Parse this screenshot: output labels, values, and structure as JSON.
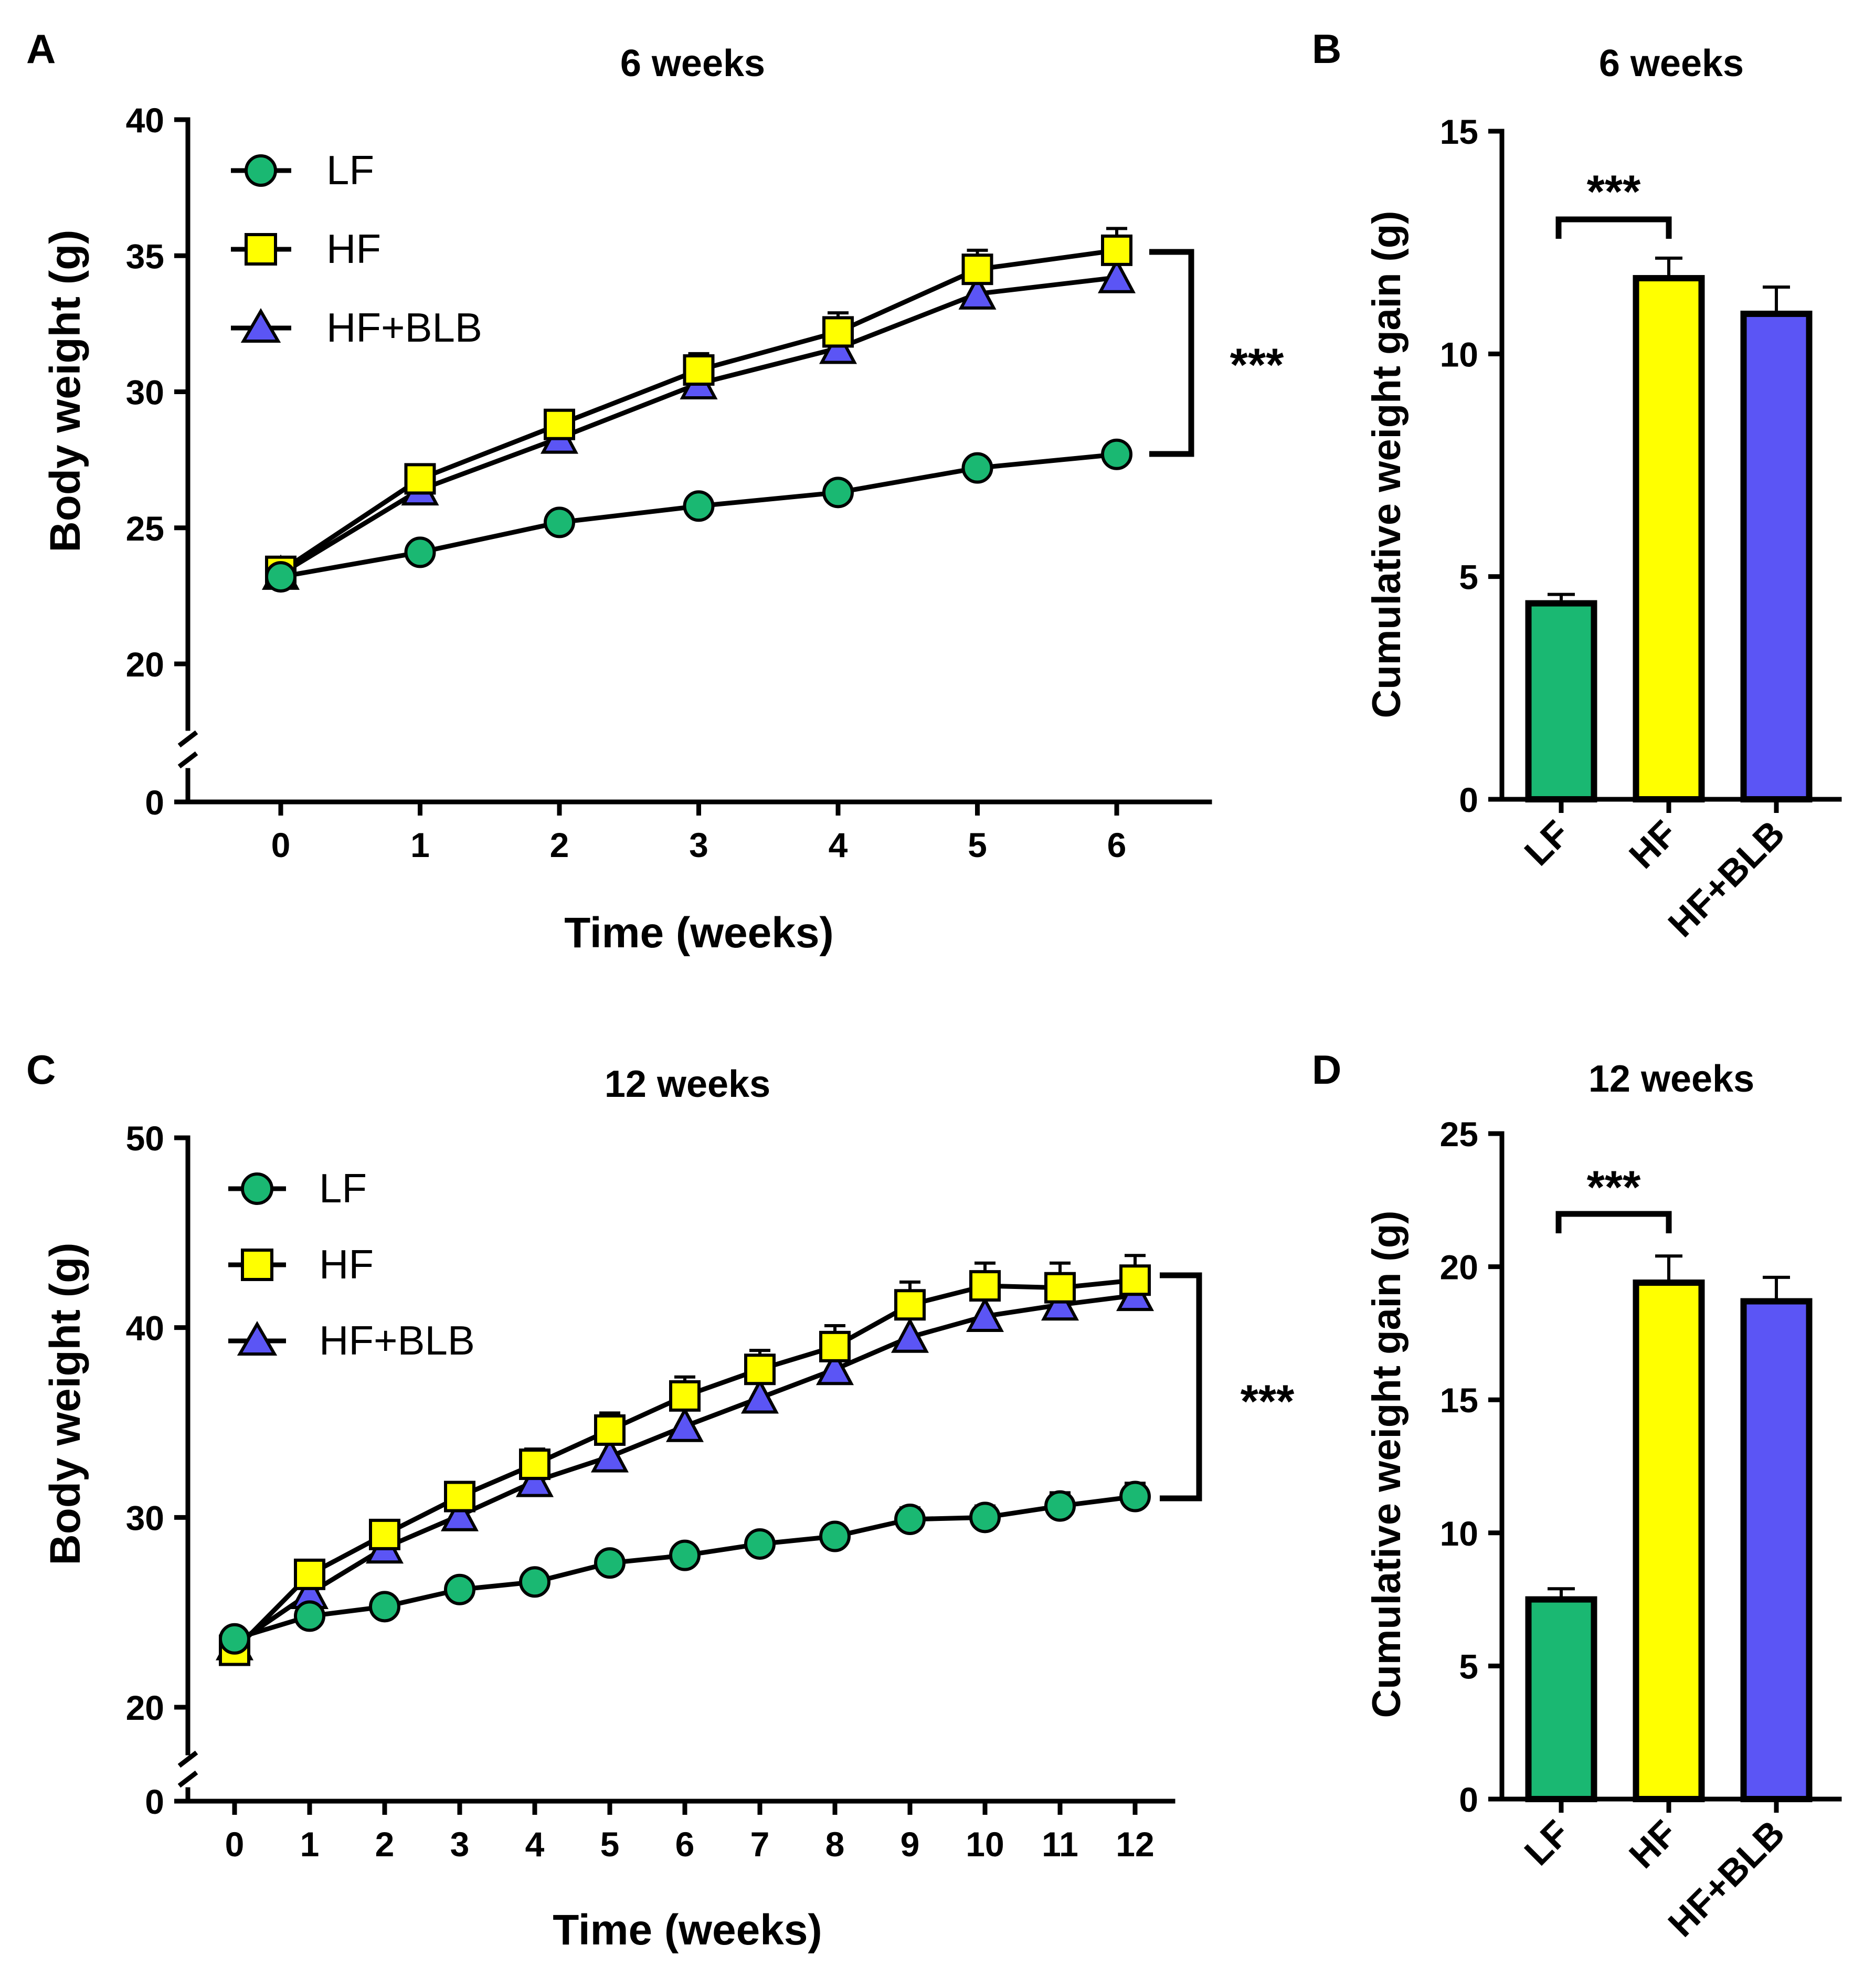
{
  "chart_data": [
    {
      "type": "line",
      "panel": "A",
      "title": "6 weeks",
      "xlabel": "Time (weeks)",
      "ylabel": "Body weight (g)",
      "x": [
        0,
        1,
        2,
        3,
        4,
        5,
        6
      ],
      "x_ticks": [
        "0",
        "1",
        "2",
        "3",
        "4",
        "5",
        "6"
      ],
      "y_ticks": [
        "0",
        "20",
        "25",
        "30",
        "35",
        "40"
      ],
      "ylim": [
        20,
        40
      ],
      "y_break": true,
      "legend_position": "top-left",
      "significance": "***",
      "series": [
        {
          "name": "LF",
          "marker": "circle",
          "color": "#1ab872",
          "values": [
            23.2,
            24.1,
            25.2,
            25.8,
            26.3,
            27.2,
            27.7
          ],
          "errors": [
            0.2,
            0.25,
            0.25,
            0.25,
            0.25,
            0.3,
            0.3
          ]
        },
        {
          "name": "HF",
          "marker": "square",
          "color": "#ffff00",
          "values": [
            23.4,
            26.8,
            28.8,
            30.8,
            32.2,
            34.5,
            35.2
          ],
          "errors": [
            0.3,
            0.4,
            0.5,
            0.6,
            0.7,
            0.7,
            0.8
          ]
        },
        {
          "name": "HF+BLB",
          "marker": "triangle",
          "color": "#5b55f5",
          "values": [
            23.3,
            26.4,
            28.3,
            30.3,
            31.6,
            33.6,
            34.2
          ],
          "errors": [
            0.3,
            0.4,
            0.5,
            0.5,
            0.6,
            0.6,
            0.7
          ]
        }
      ]
    },
    {
      "type": "bar",
      "panel": "B",
      "title": "6 weeks",
      "xlabel": "",
      "ylabel": "Cumulative weight gain (g)",
      "categories": [
        "LF",
        "HF",
        "HF+BLB"
      ],
      "values": [
        4.4,
        11.7,
        10.9
      ],
      "errors": [
        0.2,
        0.45,
        0.6
      ],
      "colors": [
        "#1ab872",
        "#ffff00",
        "#5b55f5"
      ],
      "y_ticks": [
        "0",
        "5",
        "10",
        "15"
      ],
      "ylim": [
        0,
        15
      ],
      "significance": "***"
    },
    {
      "type": "line",
      "panel": "C",
      "title": "12 weeks",
      "xlabel": "Time (weeks)",
      "ylabel": "Body weight (g)",
      "x": [
        0,
        1,
        2,
        3,
        4,
        5,
        6,
        7,
        8,
        9,
        10,
        11,
        12
      ],
      "x_ticks": [
        "0",
        "1",
        "2",
        "3",
        "4",
        "5",
        "6",
        "7",
        "8",
        "9",
        "10",
        "11",
        "12"
      ],
      "y_ticks": [
        "0",
        "20",
        "30",
        "40",
        "50"
      ],
      "ylim": [
        20,
        50
      ],
      "y_break": true,
      "legend_position": "top-left",
      "significance": "***",
      "series": [
        {
          "name": "LF",
          "marker": "circle",
          "color": "#1ab872",
          "values": [
            23.6,
            24.8,
            25.3,
            26.2,
            26.6,
            27.6,
            28.0,
            28.6,
            29.0,
            29.9,
            30.0,
            30.6,
            31.1
          ],
          "errors": [
            0.3,
            0.3,
            0.35,
            0.4,
            0.4,
            0.45,
            0.45,
            0.5,
            0.55,
            0.6,
            0.6,
            0.7,
            0.7
          ]
        },
        {
          "name": "HF",
          "marker": "square",
          "color": "#ffff00",
          "values": [
            23.0,
            27.0,
            29.1,
            31.1,
            32.8,
            34.6,
            36.4,
            37.8,
            39.0,
            41.2,
            42.2,
            42.1,
            42.5
          ],
          "errors": [
            0.3,
            0.5,
            0.6,
            0.7,
            0.8,
            0.9,
            1.0,
            1.0,
            1.1,
            1.2,
            1.2,
            1.3,
            1.3
          ]
        },
        {
          "name": "HF+BLB",
          "marker": "triangle",
          "color": "#5b55f5",
          "values": [
            23.3,
            26.0,
            28.4,
            30.1,
            31.9,
            33.2,
            34.8,
            36.3,
            37.8,
            39.5,
            40.6,
            41.2,
            41.7
          ],
          "errors": [
            0.3,
            0.5,
            0.6,
            0.7,
            0.8,
            0.9,
            0.9,
            1.0,
            1.0,
            1.1,
            1.1,
            1.1,
            1.2
          ]
        }
      ]
    },
    {
      "type": "bar",
      "panel": "D",
      "title": "12 weeks",
      "xlabel": "",
      "ylabel": "Cumulative weight gain (g)",
      "categories": [
        "LF",
        "HF",
        "HF+BLB"
      ],
      "values": [
        7.5,
        19.4,
        18.7
      ],
      "errors": [
        0.4,
        1.0,
        0.9
      ],
      "colors": [
        "#1ab872",
        "#ffff00",
        "#5b55f5"
      ],
      "y_ticks": [
        "0",
        "5",
        "10",
        "15",
        "20",
        "25"
      ],
      "ylim": [
        0,
        25
      ],
      "significance": "***"
    }
  ]
}
